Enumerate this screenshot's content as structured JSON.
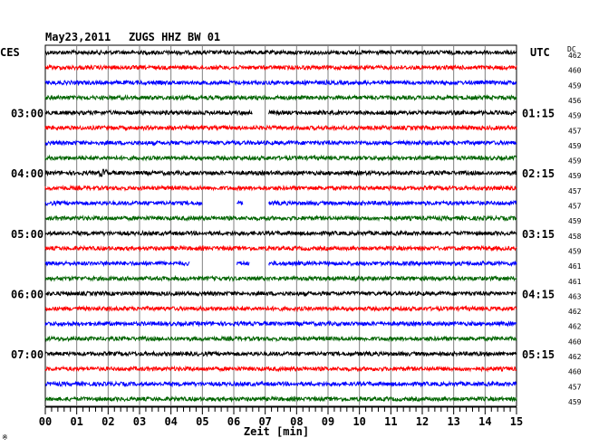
{
  "header": {
    "date": "May23,2011",
    "station": "ZUGS HHZ BW 01",
    "left_zone": "CES",
    "right_zone": "UTC",
    "dc_label": "DC"
  },
  "colors": {
    "trace_cycle": [
      "#000000",
      "#ff0000",
      "#0000ff",
      "#006400"
    ],
    "grid": "#808080",
    "background": "#ffffff",
    "text": "#000000"
  },
  "chart_data": {
    "type": "line",
    "title": "May23,2011   ZUGS HHZ BW 01",
    "xlabel": "Zeit [min]",
    "xlim": [
      0,
      15
    ],
    "x_ticks": [
      "00",
      "01",
      "02",
      "03",
      "04",
      "05",
      "06",
      "07",
      "08",
      "09",
      "10",
      "11",
      "12",
      "13",
      "14",
      "15"
    ],
    "minor_ticks_per_minute": 5,
    "grid": true,
    "trace_minutes_per_line": 15,
    "left_time_labels": [
      {
        "row": 4,
        "label": "03:00"
      },
      {
        "row": 8,
        "label": "04:00"
      },
      {
        "row": 12,
        "label": "05:00"
      },
      {
        "row": 16,
        "label": "06:00"
      },
      {
        "row": 20,
        "label": "07:00"
      }
    ],
    "right_time_labels": [
      {
        "row": 4,
        "label": "01:15"
      },
      {
        "row": 8,
        "label": "02:15"
      },
      {
        "row": 12,
        "label": "03:15"
      },
      {
        "row": 16,
        "label": "04:15"
      },
      {
        "row": 20,
        "label": "05:15"
      }
    ],
    "dc_offsets": [
      462,
      460,
      459,
      456,
      459,
      457,
      459,
      459,
      459,
      457,
      457,
      459,
      458,
      459,
      461,
      461,
      463,
      462,
      462,
      460,
      462,
      460,
      457,
      459
    ],
    "gaps": [
      {
        "row": 4,
        "from_min": 6.6,
        "to_min": 7.1
      },
      {
        "row": 10,
        "from_min": 5.0,
        "to_min": 6.1
      },
      {
        "row": 10,
        "from_min": 6.3,
        "to_min": 7.1
      },
      {
        "row": 14,
        "from_min": 4.6,
        "to_min": 6.1
      },
      {
        "row": 14,
        "from_min": 6.5,
        "to_min": 7.1
      }
    ],
    "events": [
      {
        "row": 8,
        "minute": 1.85
      }
    ]
  },
  "footer_mark": "※"
}
